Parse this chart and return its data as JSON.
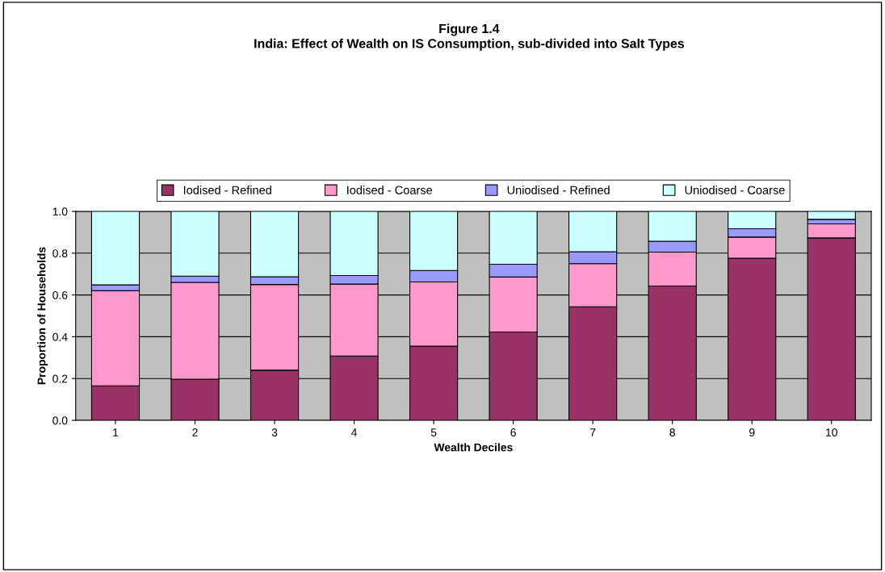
{
  "chart_data": {
    "type": "bar",
    "stacked": true,
    "title": "Figure 1.4\nIndia: Effect of Wealth on IS Consumption, sub-divided into Salt Types",
    "xlabel": "Wealth Deciles",
    "ylabel": "Proportion of Households",
    "categories": [
      "1",
      "2",
      "3",
      "4",
      "5",
      "6",
      "7",
      "8",
      "9",
      "10"
    ],
    "series": [
      {
        "name": "Iodised - Refined",
        "color": "#993366",
        "values": [
          0.165,
          0.197,
          0.24,
          0.308,
          0.355,
          0.423,
          0.543,
          0.643,
          0.776,
          0.873
        ]
      },
      {
        "name": "Iodised - Coarse",
        "color": "#ff99cc",
        "values": [
          0.455,
          0.463,
          0.41,
          0.344,
          0.307,
          0.263,
          0.207,
          0.162,
          0.101,
          0.067
        ]
      },
      {
        "name": "Uniodised - Refined",
        "color": "#9999ff",
        "values": [
          0.028,
          0.03,
          0.037,
          0.041,
          0.055,
          0.061,
          0.057,
          0.052,
          0.04,
          0.022
        ]
      },
      {
        "name": "Uniodised - Coarse",
        "color": "#ccffff",
        "values": [
          0.352,
          0.31,
          0.313,
          0.307,
          0.283,
          0.253,
          0.193,
          0.143,
          0.083,
          0.038
        ]
      }
    ],
    "ylim": [
      0,
      1
    ],
    "yticks": [
      {
        "value": 0,
        "label": "0.0"
      },
      {
        "value": 0.2,
        "label": "0.2"
      },
      {
        "value": 0.4,
        "label": "0.4"
      },
      {
        "value": 0.6,
        "label": "0.6"
      },
      {
        "value": 0.8,
        "label": "0.8"
      },
      {
        "value": 1,
        "label": "1.0"
      }
    ],
    "grid": "y",
    "legend": "top"
  }
}
